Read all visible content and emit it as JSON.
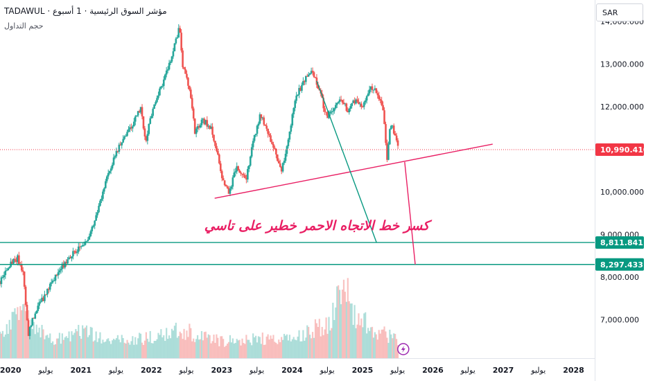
{
  "header": {
    "title": "TADAWUL · مؤشر السوق الرئيسية · 1 أسبوع",
    "volume_label": "حجم التداول"
  },
  "currency_button": "SAR",
  "annotation": "كسر خط الاتجاه الاحمر خطير على تاسي",
  "colors": {
    "up": "#26a69a",
    "down": "#ef5350",
    "trendline_red": "#e91e63",
    "trendline_green": "#089981",
    "annotation": "#e91e63",
    "last_price_label": "#f23645",
    "level_label": "#089981",
    "flash_icon": "#9c27b0"
  },
  "chart_data": {
    "type": "candlestick",
    "x_range": [
      2019.85,
      2028.3
    ],
    "y_range": [
      6100,
      14500
    ],
    "y_ticks": [
      {
        "value": 14000,
        "label": "14,000.000"
      },
      {
        "value": 13000,
        "label": "13,000.000"
      },
      {
        "value": 12000,
        "label": "12,000.000"
      },
      {
        "value": 10000,
        "label": "10,000.000"
      },
      {
        "value": 9000,
        "label": "9,000.000"
      },
      {
        "value": 8000,
        "label": "8,000.000"
      },
      {
        "value": 7000,
        "label": "7,000.000"
      }
    ],
    "x_ticks": [
      {
        "value": 2020.0,
        "label": "2020",
        "bold": true
      },
      {
        "value": 2020.5,
        "label": "يوليو",
        "bold": false
      },
      {
        "value": 2021.0,
        "label": "2021",
        "bold": true
      },
      {
        "value": 2021.5,
        "label": "يوليو",
        "bold": false
      },
      {
        "value": 2022.0,
        "label": "2022",
        "bold": true
      },
      {
        "value": 2022.5,
        "label": "يوليو",
        "bold": false
      },
      {
        "value": 2023.0,
        "label": "2023",
        "bold": true
      },
      {
        "value": 2023.5,
        "label": "يوليو",
        "bold": false
      },
      {
        "value": 2024.0,
        "label": "2024",
        "bold": true
      },
      {
        "value": 2024.5,
        "label": "يوليو",
        "bold": false
      },
      {
        "value": 2025.0,
        "label": "2025",
        "bold": true
      },
      {
        "value": 2025.5,
        "label": "يوليو",
        "bold": false
      },
      {
        "value": 2026.0,
        "label": "2026",
        "bold": true
      },
      {
        "value": 2026.5,
        "label": "يوليو",
        "bold": false
      },
      {
        "value": 2027.0,
        "label": "2027",
        "bold": true
      },
      {
        "value": 2027.5,
        "label": "يوليو",
        "bold": false
      },
      {
        "value": 2028.0,
        "label": "2028",
        "bold": true
      }
    ],
    "price_path": [
      [
        2019.85,
        7900
      ],
      [
        2020.0,
        8300
      ],
      [
        2020.1,
        8450
      ],
      [
        2020.18,
        8100
      ],
      [
        2020.25,
        6650
      ],
      [
        2020.35,
        7200
      ],
      [
        2020.5,
        7600
      ],
      [
        2020.65,
        8050
      ],
      [
        2020.8,
        8400
      ],
      [
        2020.95,
        8650
      ],
      [
        2021.1,
        8900
      ],
      [
        2021.25,
        9600
      ],
      [
        2021.4,
        10500
      ],
      [
        2021.55,
        11100
      ],
      [
        2021.7,
        11500
      ],
      [
        2021.85,
        11950
      ],
      [
        2021.92,
        11200
      ],
      [
        2022.0,
        11800
      ],
      [
        2022.15,
        12500
      ],
      [
        2022.3,
        13200
      ],
      [
        2022.4,
        13900
      ],
      [
        2022.45,
        12900
      ],
      [
        2022.55,
        12400
      ],
      [
        2022.62,
        11400
      ],
      [
        2022.72,
        11700
      ],
      [
        2022.85,
        11500
      ],
      [
        2022.95,
        10800
      ],
      [
        2023.0,
        10300
      ],
      [
        2023.1,
        10000
      ],
      [
        2023.22,
        10600
      ],
      [
        2023.35,
        10300
      ],
      [
        2023.45,
        11200
      ],
      [
        2023.55,
        11800
      ],
      [
        2023.65,
        11400
      ],
      [
        2023.75,
        11000
      ],
      [
        2023.85,
        10450
      ],
      [
        2023.95,
        11300
      ],
      [
        2024.05,
        12200
      ],
      [
        2024.2,
        12700
      ],
      [
        2024.3,
        12800
      ],
      [
        2024.4,
        12300
      ],
      [
        2024.5,
        11700
      ],
      [
        2024.6,
        12000
      ],
      [
        2024.7,
        12150
      ],
      [
        2024.8,
        11900
      ],
      [
        2024.9,
        12150
      ],
      [
        2025.0,
        12000
      ],
      [
        2025.1,
        12400
      ],
      [
        2025.18,
        12450
      ],
      [
        2025.25,
        12150
      ],
      [
        2025.3,
        11800
      ],
      [
        2025.35,
        10800
      ],
      [
        2025.4,
        11600
      ],
      [
        2025.48,
        11300
      ],
      [
        2025.52,
        10990
      ]
    ],
    "volume_path": [
      [
        2019.85,
        0.25
      ],
      [
        2020.2,
        0.55
      ],
      [
        2020.3,
        0.35
      ],
      [
        2020.6,
        0.2
      ],
      [
        2021.0,
        0.28
      ],
      [
        2021.5,
        0.18
      ],
      [
        2022.0,
        0.22
      ],
      [
        2022.4,
        0.3
      ],
      [
        2023.0,
        0.18
      ],
      [
        2023.5,
        0.2
      ],
      [
        2024.0,
        0.22
      ],
      [
        2024.5,
        0.35
      ],
      [
        2024.75,
        0.75
      ],
      [
        2024.9,
        0.45
      ],
      [
        2025.2,
        0.3
      ],
      [
        2025.5,
        0.2
      ]
    ],
    "last_price": {
      "value": 10990.41,
      "label": "10,990.410"
    },
    "horizontal_levels": [
      {
        "value": 8811.841,
        "label": "8,811.841"
      },
      {
        "value": 8297.433,
        "label": "8,297.433"
      }
    ],
    "trendlines": [
      {
        "name": "red-uptrend",
        "points": [
          [
            2022.9,
            9850
          ],
          [
            2026.85,
            11120
          ]
        ],
        "color": "trendline_red"
      },
      {
        "name": "red-drop",
        "points": [
          [
            2025.6,
            10700
          ],
          [
            2025.75,
            8297
          ]
        ],
        "color": "trendline_red"
      },
      {
        "name": "green-drop",
        "points": [
          [
            2024.35,
            12600
          ],
          [
            2025.2,
            8811
          ]
        ],
        "color": "trendline_green"
      }
    ]
  }
}
